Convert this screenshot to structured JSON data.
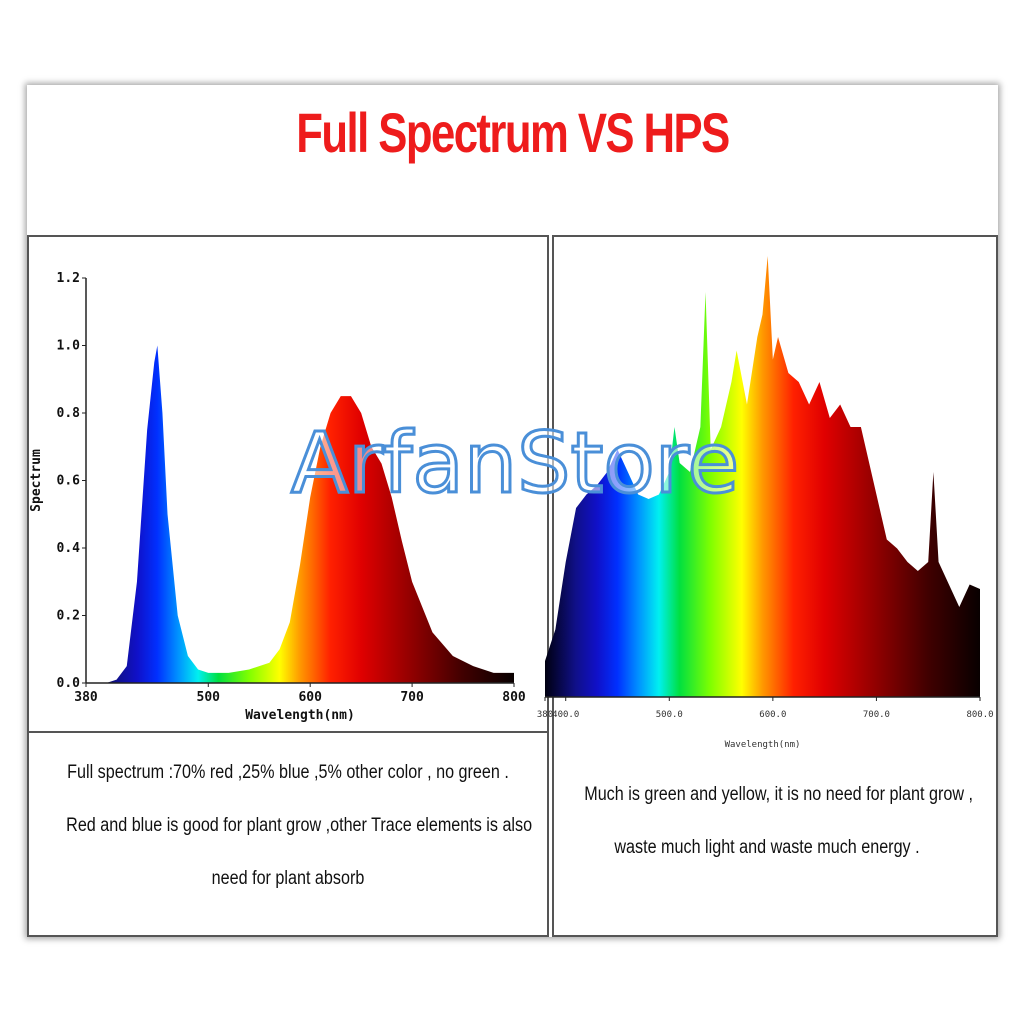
{
  "title": "Full Spectrum VS HPS",
  "watermark": "ArfanStore",
  "left_description": [
    "Full spectrum :70% red ,25% blue ,5% other color , no green .",
    "Red and blue is good for plant grow ,other Trace elements is also",
    "need for plant absorb"
  ],
  "right_description": [
    "Much is green and yellow, it is no need for plant grow ,",
    "waste much light and waste much energy ."
  ],
  "chart_data": [
    {
      "type": "area",
      "title": "",
      "xlabel": "Wavelength(nm)",
      "ylabel": "Spectrum",
      "xlim": [
        380,
        800
      ],
      "ylim": [
        0,
        1.2
      ],
      "x_ticks": [
        "380",
        "500",
        "600",
        "700",
        "800"
      ],
      "y_ticks": [
        "0.0",
        "0.2",
        "0.4",
        "0.6",
        "0.8",
        "1.0",
        "1.2"
      ],
      "fill": "visible-spectrum gradient",
      "x": [
        380,
        400,
        410,
        420,
        430,
        440,
        447,
        450,
        455,
        460,
        470,
        480,
        490,
        500,
        520,
        540,
        560,
        570,
        580,
        590,
        600,
        610,
        620,
        630,
        640,
        650,
        660,
        670,
        680,
        690,
        700,
        720,
        740,
        760,
        780,
        800
      ],
      "y": [
        0,
        0,
        0.01,
        0.05,
        0.3,
        0.75,
        0.95,
        1.0,
        0.8,
        0.5,
        0.2,
        0.08,
        0.04,
        0.03,
        0.03,
        0.04,
        0.06,
        0.1,
        0.18,
        0.35,
        0.55,
        0.7,
        0.8,
        0.85,
        0.85,
        0.8,
        0.7,
        0.65,
        0.55,
        0.42,
        0.3,
        0.15,
        0.08,
        0.05,
        0.03,
        0.03
      ]
    },
    {
      "type": "area",
      "title": "",
      "xlabel": "Wavelength(nm)",
      "ylabel": "",
      "xlim": [
        380,
        800
      ],
      "x_ticks": [
        "380",
        "400.0",
        "500.0",
        "600.0",
        "700.0",
        "800.0"
      ],
      "fill": "visible-spectrum gradient",
      "x": [
        380,
        390,
        400,
        410,
        420,
        430,
        440,
        450,
        460,
        470,
        480,
        490,
        500,
        505,
        510,
        520,
        530,
        535,
        540,
        550,
        560,
        565,
        575,
        585,
        590,
        595,
        600,
        605,
        615,
        625,
        635,
        645,
        655,
        665,
        675,
        685,
        690,
        700,
        710,
        720,
        730,
        740,
        750,
        755,
        760,
        770,
        780,
        790,
        800
      ],
      "y": [
        0.08,
        0.15,
        0.3,
        0.42,
        0.45,
        0.47,
        0.5,
        0.55,
        0.5,
        0.45,
        0.44,
        0.45,
        0.5,
        0.6,
        0.52,
        0.5,
        0.6,
        0.9,
        0.55,
        0.6,
        0.7,
        0.77,
        0.65,
        0.8,
        0.85,
        0.98,
        0.75,
        0.8,
        0.72,
        0.7,
        0.65,
        0.7,
        0.62,
        0.65,
        0.6,
        0.6,
        0.55,
        0.45,
        0.35,
        0.33,
        0.3,
        0.28,
        0.3,
        0.5,
        0.3,
        0.25,
        0.2,
        0.25,
        0.24
      ]
    }
  ]
}
